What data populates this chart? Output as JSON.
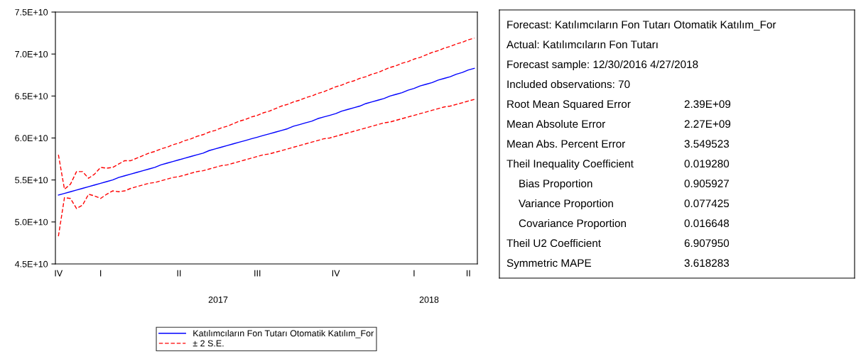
{
  "chart_data": [
    {
      "type": "line",
      "ylim": [
        45000000000,
        75000000000
      ],
      "yticks": [
        {
          "value": 45000000000,
          "label": "4.5E+10"
        },
        {
          "value": 50000000000,
          "label": "5.0E+10"
        },
        {
          "value": 55000000000,
          "label": "5.5E+10"
        },
        {
          "value": 60000000000,
          "label": "6.0E+10"
        },
        {
          "value": 65000000000,
          "label": "6.5E+10"
        },
        {
          "value": 70000000000,
          "label": "7.0E+10"
        },
        {
          "value": 75000000000,
          "label": "7.5E+10"
        }
      ],
      "categories": [
        "IV",
        null,
        null,
        null,
        null,
        null,
        null,
        "I",
        null,
        null,
        null,
        null,
        null,
        null,
        null,
        null,
        null,
        null,
        null,
        null,
        "II",
        null,
        null,
        null,
        null,
        null,
        null,
        null,
        null,
        null,
        null,
        null,
        null,
        "III",
        null,
        null,
        null,
        null,
        null,
        null,
        null,
        null,
        null,
        null,
        null,
        null,
        "IV",
        null,
        null,
        null,
        null,
        null,
        null,
        null,
        null,
        null,
        null,
        null,
        null,
        "I",
        null,
        null,
        null,
        null,
        null,
        null,
        null,
        null,
        "II",
        null
      ],
      "annotations": [
        "2017",
        "2018"
      ],
      "legend": "bottom",
      "series": [
        {
          "name": "Katılımcıların Fon Tutarı Otomatik Katılım_For",
          "color": "#0000ff",
          "line_style": "solid",
          "values": [
            53200000000.0,
            53400000000.0,
            53600000000.0,
            53800000000.0,
            54000000000.0,
            54200000000.0,
            54400000000.0,
            54600000000.0,
            54800000000.0,
            55000000000.0,
            55300000000.0,
            55500000000.0,
            55700000000.0,
            55900000000.0,
            56100000000.0,
            56300000000.0,
            56500000000.0,
            56800000000.0,
            57000000000.0,
            57200000000.0,
            57400000000.0,
            57600000000.0,
            57800000000.0,
            58000000000.0,
            58200000000.0,
            58500000000.0,
            58700000000.0,
            58900000000.0,
            59100000000.0,
            59300000000.0,
            59500000000.0,
            59700000000.0,
            59900000000.0,
            60100000000.0,
            60300000000.0,
            60500000000.0,
            60700000000.0,
            60900000000.0,
            61100000000.0,
            61400000000.0,
            61600000000.0,
            61800000000.0,
            62000000000.0,
            62300000000.0,
            62500000000.0,
            62700000000.0,
            62900000000.0,
            63200000000.0,
            63400000000.0,
            63600000000.0,
            63800000000.0,
            64100000000.0,
            64300000000.0,
            64500000000.0,
            64700000000.0,
            65000000000.0,
            65200000000.0,
            65400000000.0,
            65700000000.0,
            65900000000.0,
            66200000000.0,
            66400000000.0,
            66600000000.0,
            66900000000.0,
            67100000000.0,
            67300000000.0,
            67600000000.0,
            67800000000.0,
            68100000000.0,
            68300000000.0
          ]
        },
        {
          "name": "± 2 S.E.",
          "color": "#ff0000",
          "line_style": "dashed",
          "values": [
            58000000000.0,
            53900000000.0,
            54500000000.0,
            56000000000.0,
            56000000000.0,
            55200000000.0,
            55700000000.0,
            56500000000.0,
            56400000000.0,
            56500000000.0,
            56900000000.0,
            57300000000.0,
            57300000000.0,
            57600000000.0,
            57900000000.0,
            58200000000.0,
            58400000000.0,
            58700000000.0,
            58900000000.0,
            59200000000.0,
            59400000000.0,
            59700000000.0,
            59900000000.0,
            60200000000.0,
            60400000000.0,
            60700000000.0,
            60900000000.0,
            61200000000.0,
            61400000000.0,
            61700000000.0,
            62000000000.0,
            62200000000.0,
            62500000000.0,
            62700000000.0,
            63000000000.0,
            63200000000.0,
            63500000000.0,
            63800000000.0,
            64000000000.0,
            64300000000.0,
            64500000000.0,
            64800000000.0,
            65000000000.0,
            65300000000.0,
            65500000000.0,
            65800000000.0,
            66100000000.0,
            66300000000.0,
            66600000000.0,
            66800000000.0,
            67100000000.0,
            67300000000.0,
            67600000000.0,
            67800000000.0,
            68100000000.0,
            68400000000.0,
            68600000000.0,
            68900000000.0,
            69100000000.0,
            69400000000.0,
            69600000000.0,
            69900000000.0,
            70200000000.0,
            70400000000.0,
            70700000000.0,
            70900000000.0,
            71200000000.0,
            71400000000.0,
            71700000000.0,
            71900000000.0
          ]
        },
        {
          "color": "#ff0000",
          "line_style": "dashed",
          "values": [
            48300000000.0,
            52900000000.0,
            52800000000.0,
            51600000000.0,
            52000000000.0,
            53300000000.0,
            53100000000.0,
            52800000000.0,
            53300000000.0,
            53700000000.0,
            53600000000.0,
            53700000000.0,
            54000000000.0,
            54200000000.0,
            54400000000.0,
            54600000000.0,
            54700000000.0,
            54900000000.0,
            55100000000.0,
            55300000000.0,
            55400000000.0,
            55600000000.0,
            55800000000.0,
            56000000000.0,
            56100000000.0,
            56300000000.0,
            56500000000.0,
            56700000000.0,
            56800000000.0,
            57000000000.0,
            57200000000.0,
            57400000000.0,
            57600000000.0,
            57800000000.0,
            58000000000.0,
            58100000000.0,
            58300000000.0,
            58500000000.0,
            58700000000.0,
            58900000000.0,
            59100000000.0,
            59300000000.0,
            59500000000.0,
            59700000000.0,
            59900000000.0,
            60000000000.0,
            60200000000.0,
            60400000000.0,
            60600000000.0,
            60800000000.0,
            61000000000.0,
            61200000000.0,
            61400000000.0,
            61600000000.0,
            61800000000.0,
            61900000000.0,
            62100000000.0,
            62300000000.0,
            62500000000.0,
            62700000000.0,
            62900000000.0,
            63100000000.0,
            63300000000.0,
            63500000000.0,
            63700000000.0,
            63800000000.0,
            64000000000.0,
            64200000000.0,
            64400000000.0,
            64600000000.0
          ]
        }
      ]
    },
    {
      "type": "other",
      "annotations": [
        "Forecast: Katılımcıların Fon Tutarı Otomatik Katılım_For",
        "Actual: Katılımcıların Fon Tutarı",
        "Forecast sample: 12/30/2016 4/27/2018",
        "Included observations: 70"
      ],
      "categories": [
        "Root Mean Squared Error",
        "Mean Absolute Error",
        "Mean Abs. Percent Error",
        "Theil Inequality Coefficient",
        "    Bias Proportion",
        "    Variance Proportion",
        "    Covariance Proportion",
        "Theil U2 Coefficient",
        "Symmetric MAPE"
      ],
      "value_labels": [
        "2.39E+09",
        "2.27E+09",
        "3.549523",
        "0.019280",
        "0.905927",
        "0.077425",
        "0.016648",
        "6.907950",
        "3.618283"
      ]
    }
  ]
}
